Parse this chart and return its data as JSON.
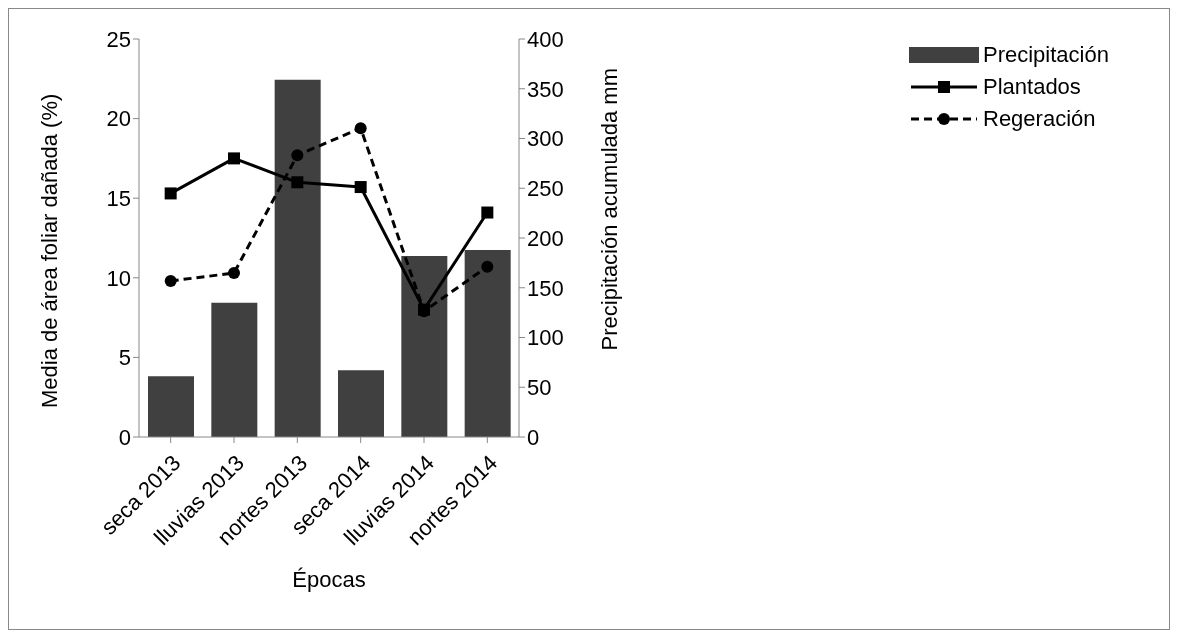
{
  "chart_data": {
    "type": "bar",
    "xlabel": "Épocas",
    "ylabel": "Media de área foliar dañada (%)",
    "y2label": "Precipitación acumulada mm",
    "categories": [
      "seca 2013",
      "lluvias 2013",
      "nortes 2013",
      "seca 2014",
      "lluvias 2014",
      "nortes 2014"
    ],
    "series": [
      {
        "name": "Precipitación",
        "axis": "y2",
        "color": "#404040",
        "values": [
          61,
          135,
          359,
          67,
          182,
          188
        ]
      },
      {
        "name": "Plantados",
        "type": "line",
        "color": "#000000",
        "marker": "square",
        "line_style": "solid",
        "values": [
          15.3,
          17.5,
          16.0,
          15.7,
          8.0,
          14.1
        ]
      },
      {
        "name": "Regeración",
        "type": "line",
        "color": "#000000",
        "marker": "circle",
        "line_style": "dashed",
        "values": [
          9.8,
          10.3,
          17.7,
          19.4,
          7.9,
          10.7
        ]
      }
    ],
    "ylim": [
      0,
      25
    ],
    "yticks": [
      0,
      5,
      10,
      15,
      20,
      25
    ],
    "y2lim": [
      0,
      400
    ],
    "y2ticks": [
      0,
      50,
      100,
      150,
      200,
      250,
      300,
      350,
      400
    ],
    "legend": "top right"
  }
}
